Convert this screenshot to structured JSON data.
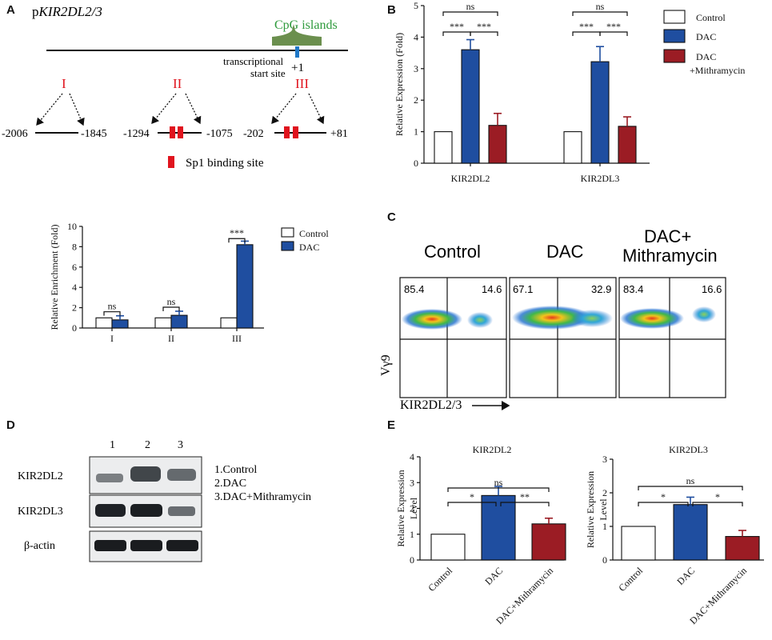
{
  "colors": {
    "control": "#ffffff",
    "dac": "#1f4ea0",
    "mith": "#9b1c24",
    "red": "#e0141e",
    "cpg": "#6b8f4e",
    "tss": "#1f78c8"
  },
  "panels": {
    "a": "A",
    "b": "B",
    "c": "C",
    "d": "D",
    "e": "E"
  },
  "panel_a": {
    "title_prefix": "p",
    "title_gene": "KIR2DL2/3",
    "cpg_label": "CpG islands",
    "tss_label_1": "transcriptional",
    "tss_label_2": "start site",
    "tss_pos": "+1",
    "regions": [
      {
        "numeral": "I",
        "start": "-2006",
        "end": "-1845"
      },
      {
        "numeral": "II",
        "start": "-1294",
        "end": "-1075"
      },
      {
        "numeral": "III",
        "start": "-202",
        "end": "+81"
      }
    ],
    "sp1_label": "Sp1 binding site"
  },
  "panel_c": {
    "titles": [
      "Control",
      "DAC",
      "DAC+",
      "Mithramycin"
    ],
    "percents": [
      {
        "ul": "85.4",
        "ur": "14.6"
      },
      {
        "ul": "67.1",
        "ur": "32.9"
      },
      {
        "ul": "83.4",
        "ur": "16.6"
      }
    ],
    "y_label": "Vγ9",
    "x_label": "KIR2DL2/3"
  },
  "panel_d": {
    "lanes": [
      "1",
      "2",
      "3"
    ],
    "rows": [
      "KIR2DL2",
      "KIR2DL3",
      "β-actin"
    ],
    "legend": [
      "1.Control",
      "2.DAC",
      "3.DAC+Mithramycin"
    ]
  },
  "chart_data": [
    {
      "id": "a_enrichment",
      "type": "bar",
      "categories": [
        "I",
        "II",
        "III"
      ],
      "series": [
        {
          "name": "Control",
          "values": [
            1.0,
            1.0,
            1.0
          ],
          "errors": [
            0,
            0,
            0
          ]
        },
        {
          "name": "DAC",
          "values": [
            0.8,
            1.25,
            8.2
          ],
          "errors": [
            0.4,
            0.4,
            0.35
          ]
        }
      ],
      "ylabel": "Relative Enrichment (Fold)",
      "ylim": [
        0,
        10
      ],
      "yticks": [
        0,
        2,
        4,
        6,
        8,
        10
      ],
      "legend": [
        "Control",
        "DAC"
      ],
      "significance": [
        "ns",
        "ns",
        "***"
      ]
    },
    {
      "id": "b_expression",
      "type": "bar",
      "categories": [
        "KIR2DL2",
        "KIR2DL3"
      ],
      "series": [
        {
          "name": "Control",
          "values": [
            1.0,
            1.0
          ],
          "errors": [
            0,
            0
          ]
        },
        {
          "name": "DAC",
          "values": [
            3.6,
            3.22
          ],
          "errors": [
            0.32,
            0.48
          ]
        },
        {
          "name": "DAC +Mithramycin",
          "values": [
            1.2,
            1.17
          ],
          "errors": [
            0.38,
            0.3
          ]
        }
      ],
      "ylabel": "Relative Expression (Fold)",
      "ylim": [
        0,
        5
      ],
      "yticks": [
        0,
        1,
        2,
        3,
        4,
        5
      ],
      "legend": [
        "Control",
        "DAC",
        "DAC",
        "+Mithramycin"
      ],
      "significance": {
        "top": "ns",
        "left": "***",
        "right": "***"
      }
    },
    {
      "id": "e_kir2dl2",
      "type": "bar",
      "title": "KIR2DL2",
      "categories": [
        "Control",
        "DAC",
        "DAC+Mithramycin"
      ],
      "values": [
        1.0,
        2.5,
        1.4
      ],
      "errors": [
        0,
        0.35,
        0.22
      ],
      "ylabel_lines": [
        "Relative Expression",
        "Level"
      ],
      "ylim": [
        0,
        4
      ],
      "yticks": [
        0,
        1,
        2,
        3,
        4
      ],
      "significance": {
        "top": "ns",
        "left": "*",
        "right": "**"
      }
    },
    {
      "id": "e_kir2dl3",
      "type": "bar",
      "title": "KIR2DL3",
      "categories": [
        "Control",
        "DAC",
        "DAC+Mithramycin"
      ],
      "values": [
        1.0,
        1.65,
        0.7
      ],
      "errors": [
        0,
        0.22,
        0.18
      ],
      "ylabel_lines": [
        "Relative Expression",
        "Level"
      ],
      "ylim": [
        0,
        3
      ],
      "yticks": [
        0,
        1,
        2,
        3
      ],
      "significance": {
        "top": "ns",
        "left": "*",
        "right": "*"
      }
    }
  ]
}
